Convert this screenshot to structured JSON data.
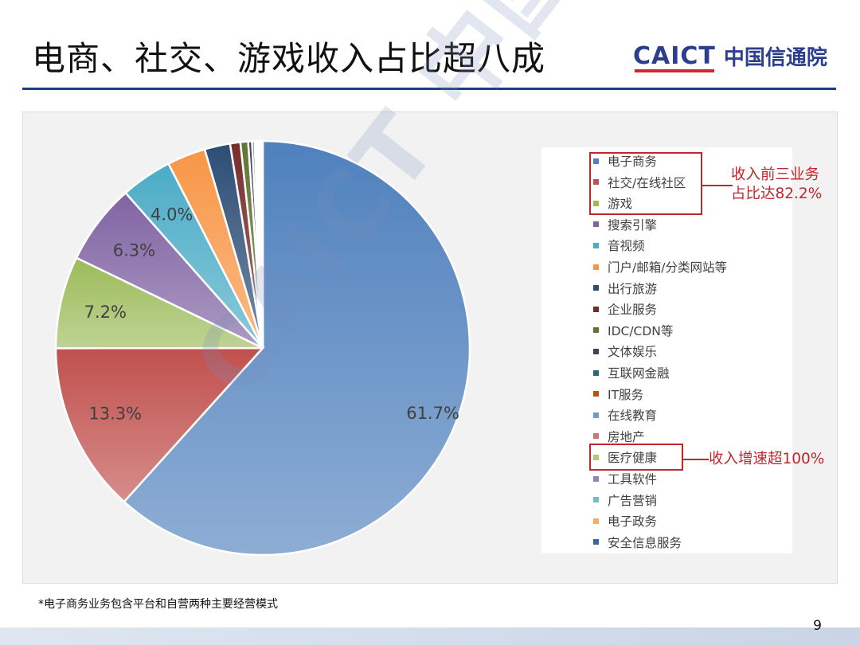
{
  "slide": {
    "title": "电商、社交、游戏收入占比超八成",
    "logo_mark": "CAICT",
    "logo_text": "中国信通院",
    "footnote": "*电子商务业务包含平台和自营两种主要经营模式",
    "page_number": "9",
    "watermark": "CAICT 中国信通院"
  },
  "callouts": [
    {
      "text_line1": "收入前三业务",
      "text_line2": "占比达82.2%"
    },
    {
      "text_line1": "收入增速超100%"
    }
  ],
  "chart_data": {
    "type": "pie",
    "title": "",
    "start_angle_deg": 0,
    "direction": "clockwise",
    "legend_position": "right",
    "slices": [
      {
        "name": "电子商务",
        "value": 61.7,
        "label": "61.7%",
        "color": "#4f81bd"
      },
      {
        "name": "社交/在线社区",
        "value": 13.3,
        "label": "13.3%",
        "color": "#c0504d"
      },
      {
        "name": "游戏",
        "value": 7.2,
        "label": "7.2%",
        "color": "#9bbb59"
      },
      {
        "name": "搜索引擎",
        "value": 6.3,
        "label": "6.3%",
        "color": "#8064a2"
      },
      {
        "name": "音视频",
        "value": 4.0,
        "label": "4.0%",
        "color": "#4bacc6"
      },
      {
        "name": "门户/邮箱/分类网站等",
        "value": 3.0,
        "label": "",
        "color": "#f79646"
      },
      {
        "name": "出行旅游",
        "value": 2.0,
        "label": "",
        "color": "#2c4d75"
      },
      {
        "name": "企业服务",
        "value": 0.8,
        "label": "",
        "color": "#772c2a"
      },
      {
        "name": "IDC/CDN等",
        "value": 0.6,
        "label": "",
        "color": "#5f7530"
      },
      {
        "name": "文体娱乐",
        "value": 0.3,
        "label": "",
        "color": "#4d3b62"
      },
      {
        "name": "互联网金融",
        "value": 0.2,
        "label": "",
        "color": "#276a7c"
      },
      {
        "name": "IT服务",
        "value": 0.15,
        "label": "",
        "color": "#b65708"
      },
      {
        "name": "在线教育",
        "value": 0.12,
        "label": "",
        "color": "#729aca"
      },
      {
        "name": "房地产",
        "value": 0.1,
        "label": "",
        "color": "#cd7371"
      },
      {
        "name": "医疗健康",
        "value": 0.08,
        "label": "",
        "color": "#afc97a"
      },
      {
        "name": "工具软件",
        "value": 0.06,
        "label": "",
        "color": "#9983b5"
      },
      {
        "name": "广告营销",
        "value": 0.05,
        "label": "",
        "color": "#6fbdd1"
      },
      {
        "name": "电子政务",
        "value": 0.04,
        "label": "",
        "color": "#f9ab6b"
      },
      {
        "name": "安全信息服务",
        "value": 0.03,
        "label": "",
        "color": "#3a679c"
      }
    ]
  }
}
